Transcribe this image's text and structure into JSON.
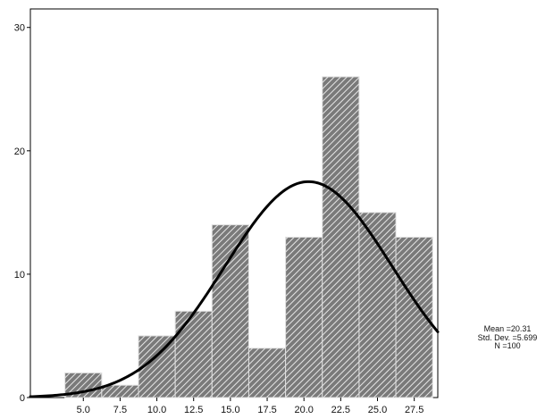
{
  "chart_data": {
    "type": "bar",
    "subtype": "histogram-with-normal-curve",
    "bins": [
      {
        "from": 3.75,
        "to": 6.25,
        "count": 2
      },
      {
        "from": 6.25,
        "to": 8.75,
        "count": 1
      },
      {
        "from": 8.75,
        "to": 11.25,
        "count": 5
      },
      {
        "from": 11.25,
        "to": 13.75,
        "count": 7
      },
      {
        "from": 13.75,
        "to": 16.25,
        "count": 14
      },
      {
        "from": 16.25,
        "to": 18.75,
        "count": 4
      },
      {
        "from": 18.75,
        "to": 21.25,
        "count": 13
      },
      {
        "from": 21.25,
        "to": 23.75,
        "count": 26
      },
      {
        "from": 23.75,
        "to": 26.25,
        "count": 15
      },
      {
        "from": 26.25,
        "to": 28.75,
        "count": 13
      }
    ],
    "x_ticks": [
      "5.0",
      "7.5",
      "10.0",
      "12.5",
      "15.0",
      "17.5",
      "20.0",
      "22.5",
      "25.0",
      "27.5"
    ],
    "y_ticks": [
      "0",
      "10",
      "20",
      "30"
    ],
    "xlim": [
      1.4,
      29.1
    ],
    "ylim": [
      0,
      31.5
    ],
    "normal_curve": {
      "mean": 20.31,
      "sd": 5.699,
      "n": 100,
      "bin_width": 2.5
    },
    "bar_fill": "#7a7a7a",
    "hatch_color": "#e6e6e6",
    "curve_color": "#000000",
    "stats": [
      "Mean =20.31",
      "Std. Dev. =5.699",
      "N =100"
    ]
  }
}
